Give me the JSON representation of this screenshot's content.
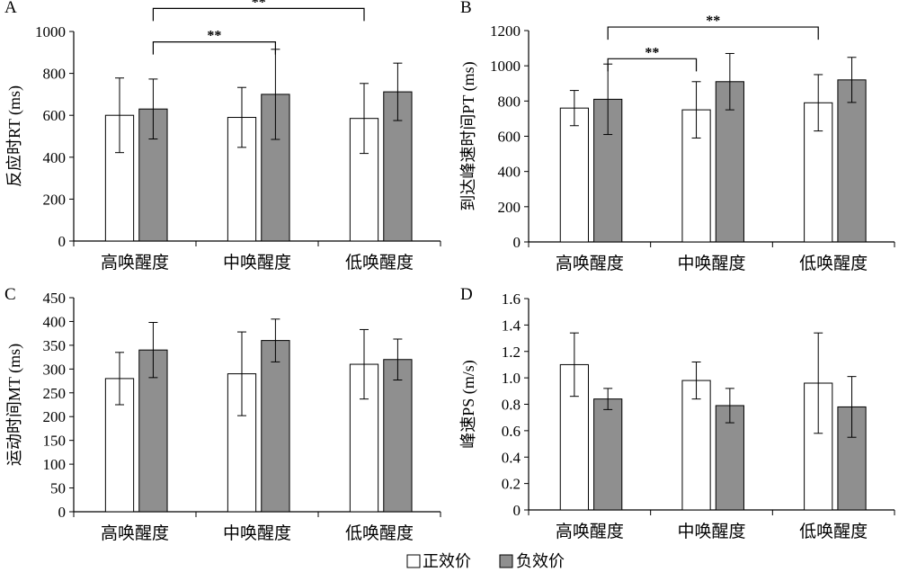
{
  "legend": [
    {
      "name": "正效价",
      "color": "#ffffff"
    },
    {
      "name": "负效价",
      "color": "#8f8f8f"
    }
  ],
  "chart_data": [
    {
      "panel": "A",
      "type": "bar",
      "ylabel": "反应时RT (ms)",
      "ylim": [
        0,
        1000
      ],
      "yticks": [
        0,
        200,
        400,
        600,
        800,
        1000
      ],
      "categories": [
        "高唤醒度",
        "中唤醒度",
        "低唤醒度"
      ],
      "series": [
        {
          "name": "正效价",
          "values": [
            600,
            590,
            585
          ],
          "errors": [
            178,
            143,
            167
          ]
        },
        {
          "name": "负效价",
          "values": [
            630,
            700,
            712
          ],
          "errors": [
            143,
            215,
            137
          ]
        }
      ],
      "significance": [
        {
          "from": [
            0,
            1
          ],
          "to": [
            1,
            1
          ],
          "label": "**",
          "y": 950
        },
        {
          "from": [
            0,
            1
          ],
          "to": [
            2,
            0
          ],
          "label": "**",
          "y": 1110
        }
      ]
    },
    {
      "panel": "B",
      "type": "bar",
      "ylabel": "到达峰速时间PT (ms)",
      "ylim": [
        0,
        1200
      ],
      "yticks": [
        0,
        200,
        400,
        600,
        800,
        1000,
        1200
      ],
      "categories": [
        "高唤醒度",
        "中唤醒度",
        "低唤醒度"
      ],
      "series": [
        {
          "name": "正效价",
          "values": [
            760,
            750,
            790
          ],
          "errors": [
            100,
            160,
            160
          ]
        },
        {
          "name": "负效价",
          "values": [
            810,
            910,
            920
          ],
          "errors": [
            200,
            160,
            128
          ]
        }
      ],
      "significance": [
        {
          "from": [
            0,
            1
          ],
          "to": [
            1,
            0
          ],
          "label": "**",
          "y": 1040
        },
        {
          "from": [
            0,
            1
          ],
          "to": [
            2,
            0
          ],
          "label": "**",
          "y": 1220
        }
      ]
    },
    {
      "panel": "C",
      "type": "bar",
      "ylabel": "运动时间MT (ms)",
      "ylim": [
        0,
        450
      ],
      "yticks": [
        0,
        50,
        100,
        150,
        200,
        250,
        300,
        350,
        400,
        450
      ],
      "categories": [
        "高唤醒度",
        "中唤醒度",
        "低唤醒度"
      ],
      "series": [
        {
          "name": "正效价",
          "values": [
            280,
            290,
            310
          ],
          "errors": [
            55,
            88,
            73
          ]
        },
        {
          "name": "负效价",
          "values": [
            340,
            360,
            320
          ],
          "errors": [
            58,
            45,
            43
          ]
        }
      ],
      "significance": []
    },
    {
      "panel": "D",
      "type": "bar",
      "ylabel": "峰速PS (m/s)",
      "ylim": [
        0,
        1.6
      ],
      "yticks": [
        "0",
        "0.2",
        "0.4",
        "0.6",
        "0.8",
        "1.0",
        "1.2",
        "1.4",
        "1.6"
      ],
      "categories": [
        "高唤醒度",
        "中唤醒度",
        "低唤醒度"
      ],
      "series": [
        {
          "name": "正效价",
          "values": [
            1.1,
            0.98,
            0.96
          ],
          "errors": [
            0.24,
            0.14,
            0.38
          ]
        },
        {
          "name": "负效价",
          "values": [
            0.84,
            0.79,
            0.78
          ],
          "errors": [
            0.08,
            0.13,
            0.23
          ]
        }
      ],
      "significance": []
    }
  ]
}
